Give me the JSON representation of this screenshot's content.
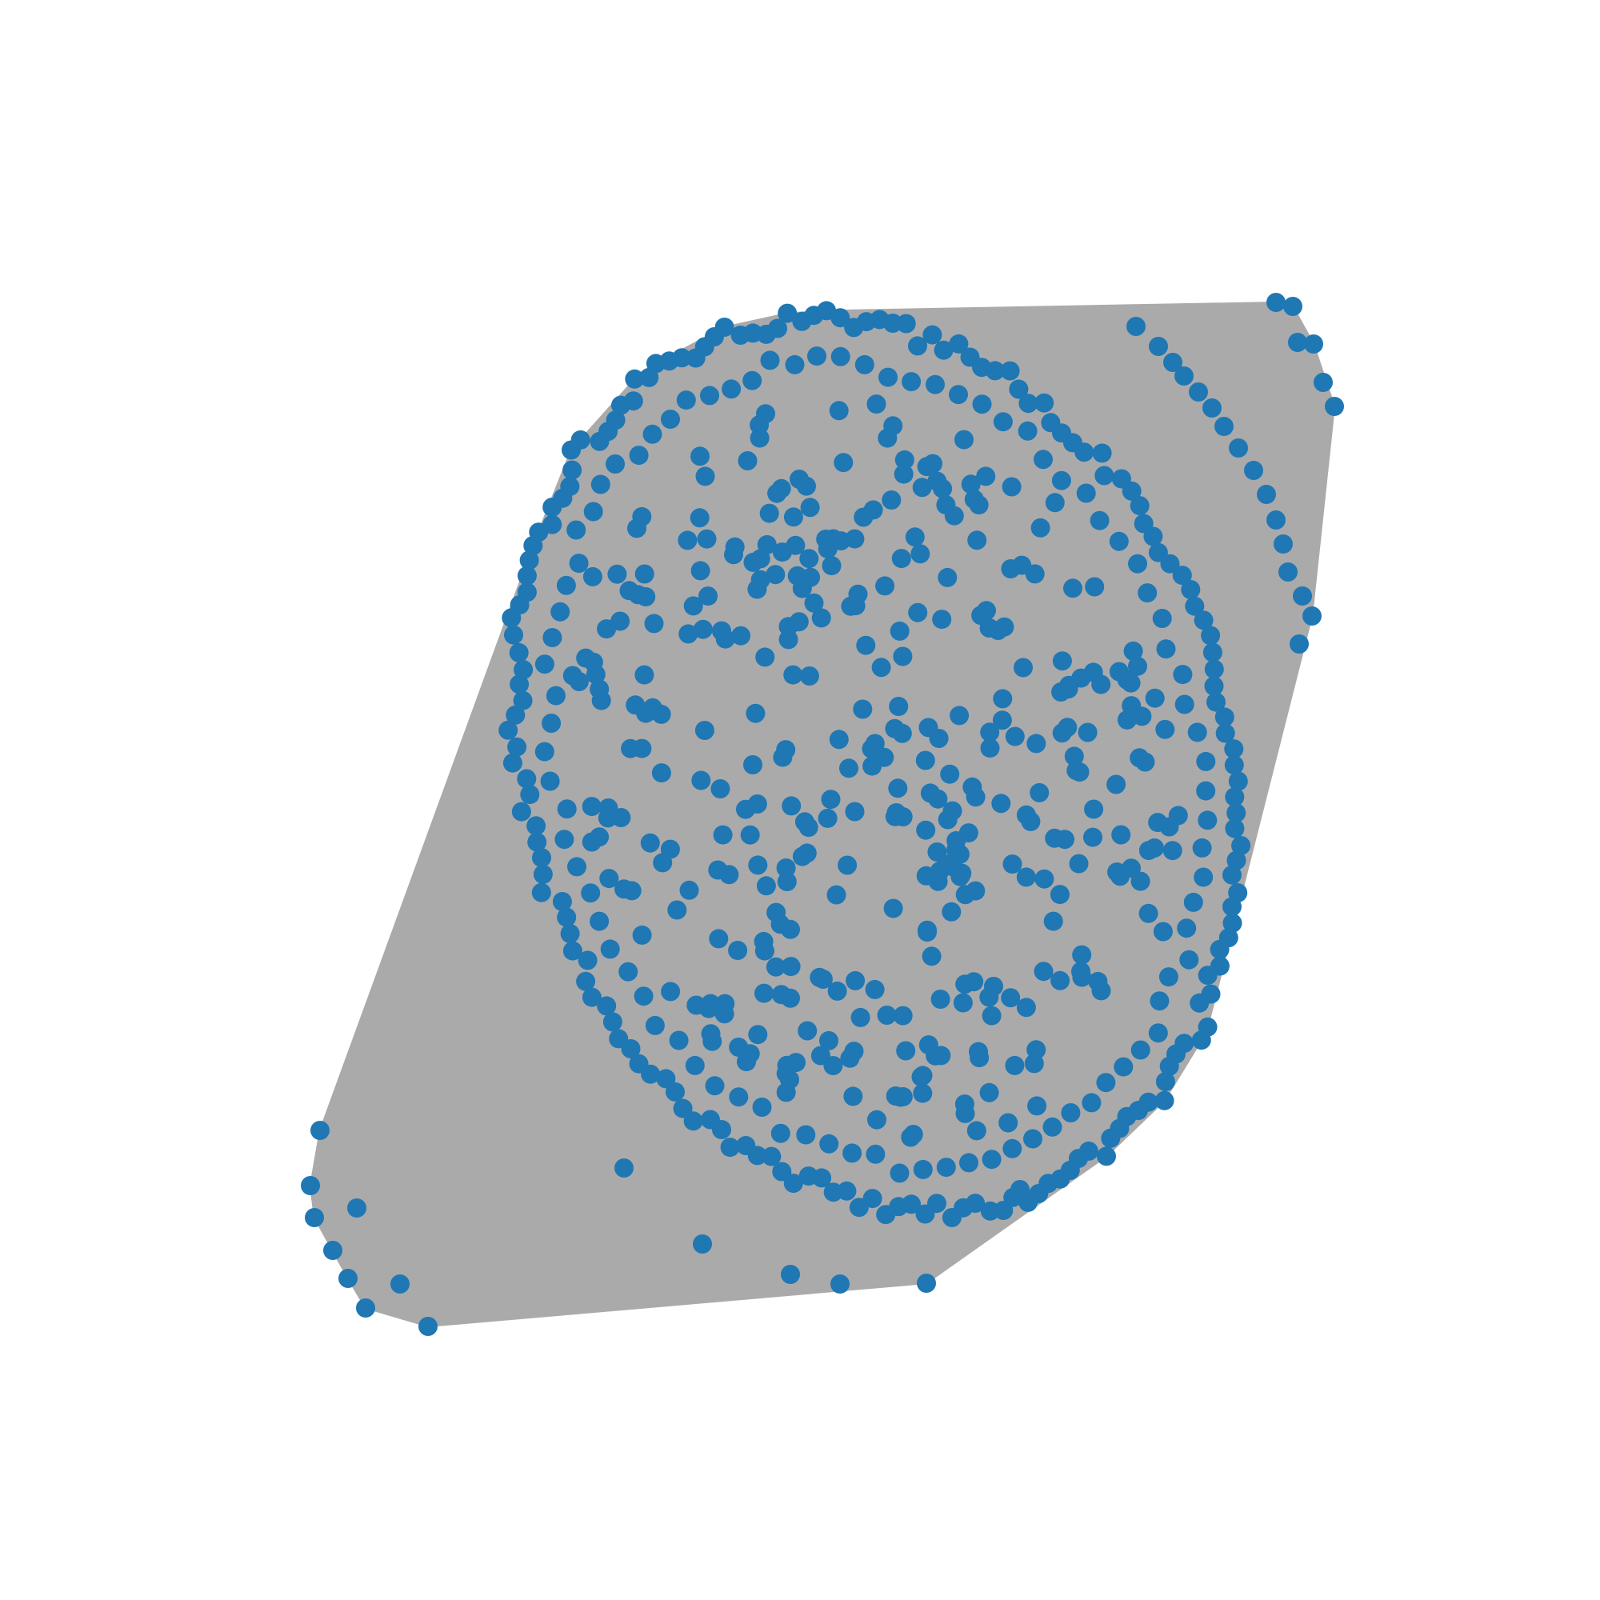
{
  "chart_data": {
    "type": "network-graph",
    "layout": "force-directed",
    "axes": "off",
    "title": "",
    "colors": {
      "node": "#1f77b4",
      "edge": "#aaaaaa",
      "background": "#ffffff"
    },
    "components": [
      {
        "name": "main-cluster",
        "shape": "ellipse",
        "node_count": 620
      },
      {
        "name": "top-right-arc",
        "node_count": 22
      },
      {
        "name": "bottom-left-group",
        "node_count": 10
      }
    ]
  }
}
